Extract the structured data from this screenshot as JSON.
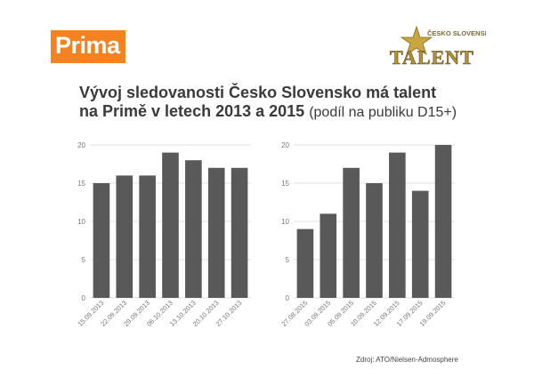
{
  "logos": {
    "prima": "Prima",
    "show_small": "ČESKO SLOVENSKO MÁ",
    "show_big": "TALENT"
  },
  "title": {
    "line1": "Vývoj sledovanosti Česko Slovensko má talent",
    "line2": "na Primě v letech 2013 a 2015",
    "line2_sub": "(podíl na publiku D15+)"
  },
  "source": "Zdroj: ATO/Nielsen-Admosphere",
  "colors": {
    "bar": "#595959",
    "grid": "#d9d9d9",
    "brand_orange": "#f58220",
    "gold": "#b8922e"
  },
  "chart_data": [
    {
      "type": "bar",
      "categories": [
        "15.09.2013",
        "22.09.2013",
        "29.09.2013",
        "06.10.2013",
        "13.10.2013",
        "20.10.2013",
        "27.10.2013"
      ],
      "values": [
        15,
        16,
        16,
        19,
        18,
        17,
        17
      ],
      "ylim": [
        0,
        20
      ],
      "yticks": [
        0,
        5,
        10,
        15,
        20
      ],
      "grid": true
    },
    {
      "type": "bar",
      "categories": [
        "27.08.2015",
        "03.09.2015",
        "05.09.2015",
        "10.09.2015",
        "12.09.2015",
        "17.09.2015",
        "19.09.2015"
      ],
      "values": [
        9,
        11,
        17,
        15,
        19,
        14,
        20
      ],
      "ylim": [
        0,
        20
      ],
      "yticks": [
        0,
        5,
        10,
        15,
        20
      ],
      "grid": true
    }
  ]
}
